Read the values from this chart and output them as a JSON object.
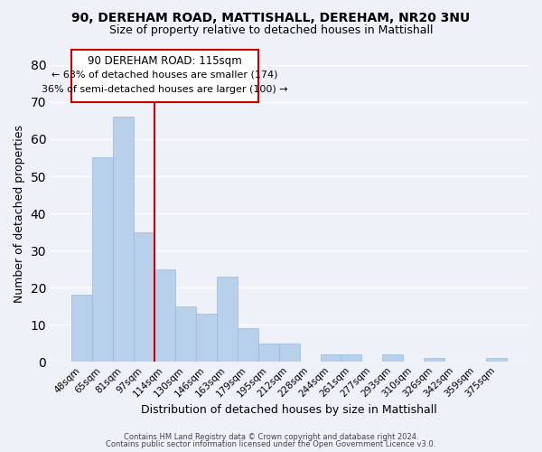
{
  "title_line1": "90, DEREHAM ROAD, MATTISHALL, DEREHAM, NR20 3NU",
  "title_line2": "Size of property relative to detached houses in Mattishall",
  "xlabel": "Distribution of detached houses by size in Mattishall",
  "ylabel": "Number of detached properties",
  "bar_labels": [
    "48sqm",
    "65sqm",
    "81sqm",
    "97sqm",
    "114sqm",
    "130sqm",
    "146sqm",
    "163sqm",
    "179sqm",
    "195sqm",
    "212sqm",
    "228sqm",
    "244sqm",
    "261sqm",
    "277sqm",
    "293sqm",
    "310sqm",
    "326sqm",
    "342sqm",
    "359sqm",
    "375sqm"
  ],
  "bar_heights": [
    18,
    55,
    66,
    35,
    25,
    15,
    13,
    23,
    9,
    5,
    5,
    0,
    2,
    2,
    0,
    2,
    0,
    1,
    0,
    0,
    1
  ],
  "bar_color": "#b8d0ea",
  "bar_edge_color": "#9ab8d8",
  "vline_color": "#cc0000",
  "vline_x": 3.5,
  "background_color": "#eef2f8",
  "grid_color": "#ffffff",
  "ylim": [
    0,
    80
  ],
  "yticks": [
    0,
    10,
    20,
    30,
    40,
    50,
    60,
    70,
    80
  ],
  "annotation_title": "90 DEREHAM ROAD: 115sqm",
  "annotation_line1": "← 63% of detached houses are smaller (174)",
  "annotation_line2": "36% of semi-detached houses are larger (100) →",
  "annotation_box_color": "#ffffff",
  "annotation_box_edge": "#cc0000",
  "footer_line1": "Contains HM Land Registry data © Crown copyright and database right 2024.",
  "footer_line2": "Contains public sector information licensed under the Open Government Licence v3.0."
}
